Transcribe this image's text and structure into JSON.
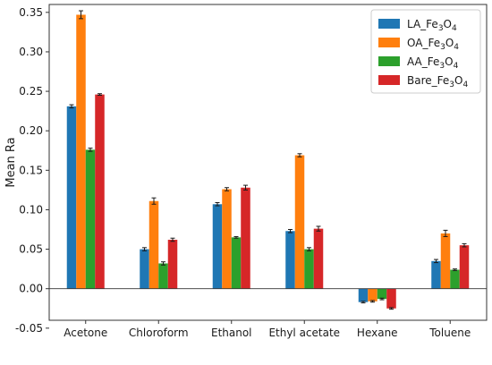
{
  "chart_data": {
    "type": "bar",
    "ylabel": "Mean Ra",
    "xlabel": "",
    "categories": [
      "Acetone",
      "Chloroform",
      "Ethanol",
      "Ethyl acetate",
      "Hexane",
      "Toluene"
    ],
    "ylim": [
      -0.04,
      0.36
    ],
    "yticks": [
      "-0.05",
      "0.00",
      "0.05",
      "0.10",
      "0.15",
      "0.20",
      "0.25",
      "0.30",
      "0.35"
    ],
    "legend_position": "top-right",
    "error_bars": true,
    "series": [
      {
        "name": "LA_Fe3O4",
        "label_main": "LA_Fe",
        "sub1": "3",
        "label_mid": "O",
        "sub2": "4",
        "color": "#1f77b4",
        "values": [
          0.231,
          0.05,
          0.107,
          0.073,
          -0.017,
          0.035
        ],
        "errors": [
          0.002,
          0.002,
          0.002,
          0.002,
          0.001,
          0.002
        ]
      },
      {
        "name": "OA_Fe3O4",
        "label_main": "OA_Fe",
        "sub1": "3",
        "label_mid": "O",
        "sub2": "4",
        "color": "#ff7f0e",
        "values": [
          0.347,
          0.111,
          0.126,
          0.169,
          -0.016,
          0.07
        ],
        "errors": [
          0.005,
          0.004,
          0.002,
          0.002,
          0.001,
          0.004
        ]
      },
      {
        "name": "AA_Fe3O4",
        "label_main": "AA_Fe",
        "sub1": "3",
        "label_mid": "O",
        "sub2": "4",
        "color": "#2ca02c",
        "values": [
          0.176,
          0.032,
          0.065,
          0.05,
          -0.013,
          0.024
        ],
        "errors": [
          0.002,
          0.002,
          0.001,
          0.002,
          0.001,
          0.001
        ]
      },
      {
        "name": "Bare_Fe3O4",
        "label_main": "Bare_Fe",
        "sub1": "3",
        "label_mid": "O",
        "sub2": "4",
        "color": "#d62728",
        "values": [
          0.246,
          0.062,
          0.128,
          0.076,
          -0.025,
          0.055
        ],
        "errors": [
          0.001,
          0.002,
          0.003,
          0.003,
          0.001,
          0.002
        ]
      }
    ]
  }
}
